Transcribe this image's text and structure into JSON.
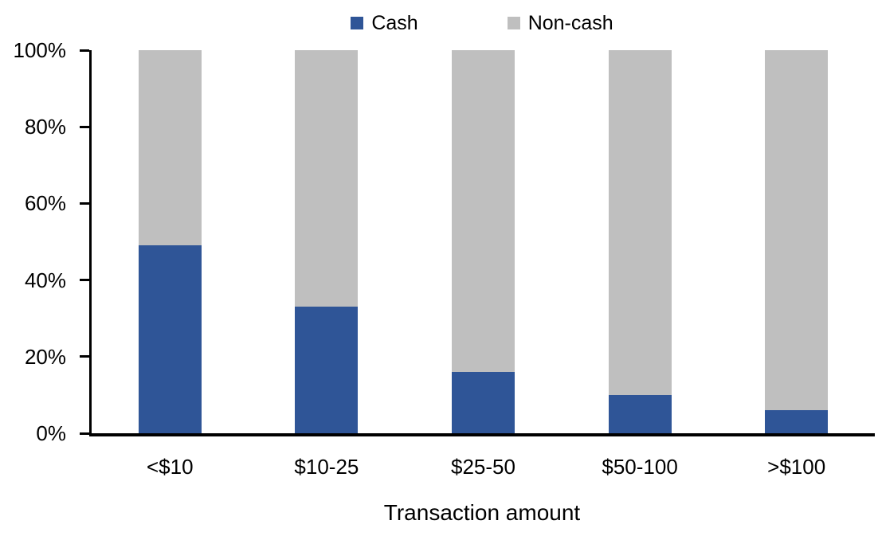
{
  "chart_data": {
    "type": "bar",
    "stacked": true,
    "percent_stacked": true,
    "title": "",
    "xlabel": "Transaction amount",
    "ylabel": "",
    "categories": [
      "<$10",
      "$10-25",
      "$25-50",
      "$50-100",
      ">$100"
    ],
    "series": [
      {
        "name": "Cash",
        "color": "#2F5597",
        "values": [
          49,
          33,
          16,
          10,
          6
        ]
      },
      {
        "name": "Non-cash",
        "color": "#BFBFBF",
        "values": [
          51,
          67,
          84,
          90,
          94
        ]
      }
    ],
    "y_ticks": [
      "0%",
      "20%",
      "40%",
      "60%",
      "80%",
      "100%"
    ],
    "ylim": [
      0,
      100
    ],
    "legend_position": "top",
    "grid": false,
    "axis_color": "#000000",
    "background_color": "#FFFFFF"
  }
}
